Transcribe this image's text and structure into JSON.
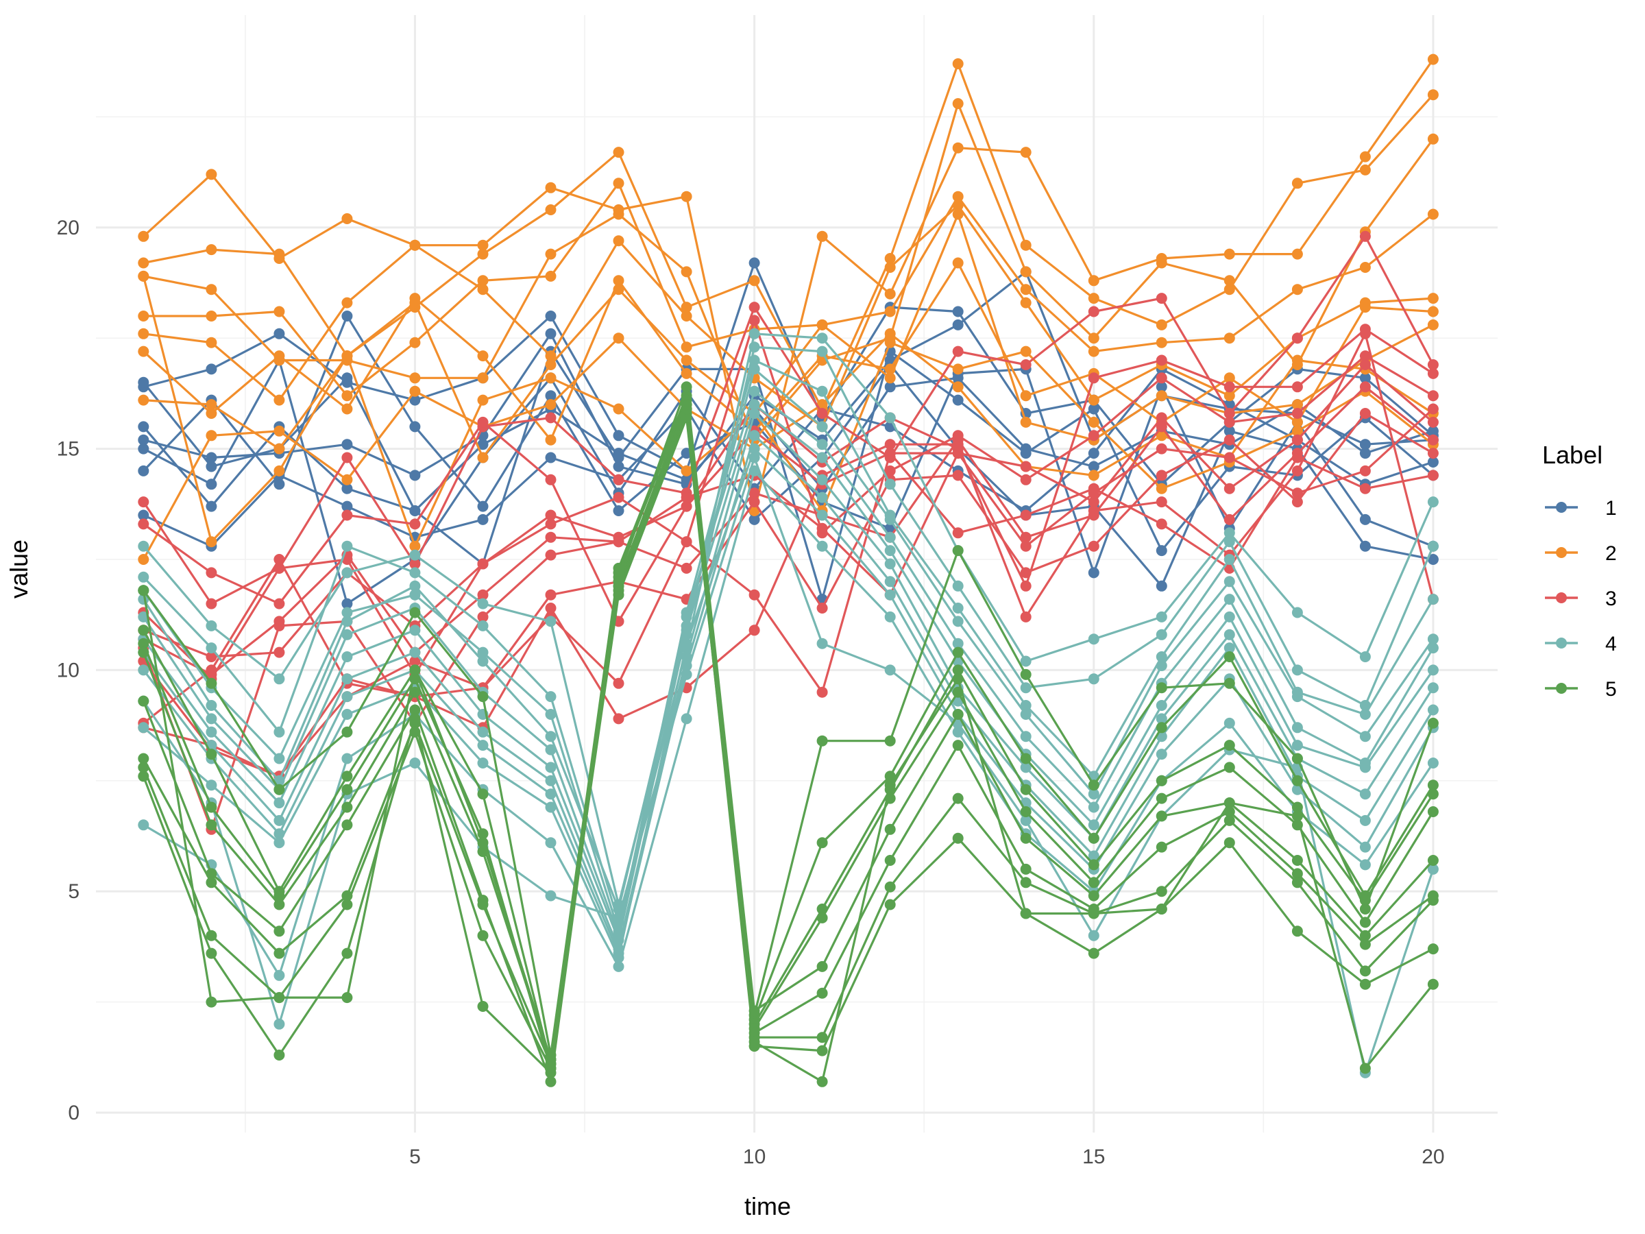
{
  "chart_data": {
    "type": "line",
    "title": "",
    "xlabel": "time",
    "ylabel": "value",
    "xlim": [
      0.3,
      20.95
    ],
    "ylim": [
      -0.45,
      24.8
    ],
    "x_ticks": [
      5,
      10,
      15,
      20
    ],
    "y_ticks": [
      0,
      5,
      10,
      15,
      20
    ],
    "x_minor_ticks": [
      2.5,
      7.5,
      12.5,
      17.5
    ],
    "y_minor_ticks": [
      2.5,
      7.5,
      12.5,
      17.5,
      22.5
    ],
    "legend": {
      "title": "Label",
      "position": "right"
    },
    "x": [
      1,
      2,
      3,
      4,
      5,
      6,
      7,
      8,
      9,
      10,
      11,
      12,
      13,
      14,
      15,
      16,
      17,
      18,
      19,
      20
    ],
    "series": [
      {
        "name": "1",
        "color": "#4e79a7",
        "lines": [
          [
            16.4,
            16.8,
            17.6,
            16.5,
            16.1,
            16.6,
            18.0,
            15.3,
            14.5,
            19.2,
            15.7,
            18.2,
            18.1,
            15.8,
            16.1,
            14.2,
            15.6,
            16.8,
            16.6,
            15.3
          ],
          [
            15.2,
            14.8,
            14.9,
            15.1,
            14.4,
            15.3,
            17.6,
            14.6,
            14.2,
            16.2,
            15.2,
            17.0,
            17.8,
            19.0,
            15.2,
            16.2,
            15.9,
            15.8,
            15.1,
            15.2
          ],
          [
            14.5,
            16.1,
            14.2,
            18.0,
            15.5,
            13.7,
            16.2,
            13.6,
            14.9,
            15.6,
            13.8,
            13.2,
            16.7,
            16.8,
            12.2,
            16.4,
            13.2,
            15.6,
            13.4,
            12.8
          ],
          [
            15.5,
            13.7,
            15.5,
            14.1,
            13.6,
            12.4,
            17.2,
            14.8,
            16.8,
            16.8,
            11.6,
            17.2,
            16.1,
            14.9,
            15.9,
            12.7,
            14.6,
            14.4,
            15.7,
            14.4
          ],
          [
            13.5,
            12.8,
            14.4,
            13.7,
            13.0,
            13.4,
            14.8,
            14.3,
            15.9,
            13.4,
            14.8,
            16.9,
            15.0,
            13.5,
            13.7,
            11.9,
            15.4,
            15.0,
            12.8,
            12.5
          ],
          [
            15.0,
            14.2,
            17.0,
            11.5,
            12.5,
            14.8,
            16.6,
            14.0,
            16.3,
            14.1,
            15.9,
            15.5,
            14.5,
            13.6,
            14.9,
            16.8,
            16.0,
            15.2,
            14.2,
            14.7
          ],
          [
            16.5,
            14.6,
            15.0,
            16.6,
            13.6,
            15.1,
            15.9,
            14.9,
            14.3,
            15.9,
            14.1,
            16.4,
            16.6,
            15.0,
            14.6,
            15.4,
            15.1,
            16.0,
            14.9,
            15.4
          ]
        ]
      },
      {
        "name": "2",
        "color": "#f28e2b",
        "lines": [
          [
            19.8,
            21.2,
            19.3,
            20.2,
            19.6,
            19.6,
            20.9,
            20.4,
            20.7,
            13.6,
            19.8,
            18.5,
            21.8,
            21.7,
            18.8,
            19.3,
            19.4,
            19.4,
            21.6,
            23.8
          ],
          [
            19.2,
            19.5,
            19.4,
            17.1,
            18.2,
            19.4,
            20.4,
            21.7,
            18.2,
            18.8,
            15.9,
            19.3,
            23.7,
            19.6,
            18.4,
            17.8,
            18.6,
            21.0,
            21.3,
            23.0
          ],
          [
            18.9,
            18.6,
            17.0,
            17.0,
            16.6,
            16.6,
            19.4,
            20.3,
            19.0,
            15.2,
            17.0,
            17.5,
            22.8,
            19.0,
            17.5,
            19.2,
            18.8,
            16.9,
            19.9,
            22.0
          ],
          [
            18.0,
            18.0,
            18.1,
            16.2,
            17.4,
            18.8,
            18.9,
            21.0,
            17.3,
            17.7,
            17.8,
            18.1,
            20.7,
            18.6,
            17.2,
            17.4,
            17.5,
            18.6,
            19.1,
            20.3
          ],
          [
            17.6,
            17.4,
            16.1,
            18.3,
            19.6,
            18.6,
            17.1,
            19.7,
            18.0,
            16.6,
            15.5,
            19.1,
            20.5,
            18.3,
            16.1,
            16.9,
            16.2,
            17.5,
            18.3,
            18.4
          ],
          [
            17.2,
            15.8,
            17.1,
            15.9,
            18.4,
            17.1,
            15.2,
            18.8,
            16.7,
            15.4,
            17.1,
            16.8,
            19.2,
            16.2,
            16.7,
            15.6,
            16.6,
            15.6,
            18.2,
            18.1
          ],
          [
            16.1,
            16.0,
            15.0,
            17.1,
            18.3,
            14.8,
            16.9,
            18.6,
            17.0,
            15.8,
            17.8,
            16.6,
            20.3,
            15.6,
            15.2,
            16.2,
            15.8,
            16.0,
            17.0,
            17.8
          ],
          [
            12.5,
            15.3,
            15.4,
            14.3,
            16.3,
            15.5,
            16.0,
            17.5,
            15.9,
            15.0,
            16.0,
            17.6,
            16.4,
            14.6,
            14.4,
            15.3,
            14.8,
            17.0,
            16.8,
            15.8
          ],
          [
            18.9,
            12.9,
            14.5,
            17.1,
            12.8,
            16.1,
            16.6,
            15.9,
            14.5,
            15.8,
            13.6,
            17.4,
            16.8,
            17.2,
            15.6,
            14.1,
            14.7,
            15.4,
            16.3,
            15.1
          ]
        ]
      },
      {
        "name": "3",
        "color": "#e15759",
        "lines": [
          [
            13.8,
            11.5,
            12.3,
            14.8,
            12.4,
            15.5,
            15.7,
            14.3,
            14.0,
            18.2,
            15.8,
            14.8,
            17.2,
            16.9,
            18.1,
            18.4,
            15.8,
            17.5,
            19.8,
            16.9
          ],
          [
            13.3,
            12.2,
            11.5,
            13.5,
            13.3,
            15.6,
            14.3,
            11.1,
            13.7,
            16.0,
            14.7,
            15.7,
            15.0,
            11.9,
            16.6,
            17.0,
            16.4,
            16.4,
            17.7,
            16.7
          ],
          [
            10.9,
            10.3,
            10.4,
            12.2,
            11.0,
            12.4,
            13.3,
            13.9,
            12.9,
            17.9,
            13.1,
            14.5,
            15.3,
            14.3,
            15.3,
            16.6,
            15.6,
            15.8,
            17.1,
            16.2
          ],
          [
            11.3,
            9.8,
            12.3,
            12.5,
            9.9,
            12.4,
            13.5,
            13.0,
            13.7,
            15.4,
            14.2,
            14.9,
            14.9,
            14.6,
            13.8,
            15.7,
            14.1,
            15.2,
            16.9,
            15.6
          ],
          [
            10.7,
            9.9,
            11.1,
            12.6,
            10.4,
            11.7,
            13.0,
            12.9,
            12.3,
            14.0,
            13.5,
            13.0,
            15.2,
            13.0,
            13.5,
            15.5,
            13.4,
            14.9,
            16.4,
            15.2
          ],
          [
            10.5,
            6.4,
            11.0,
            11.1,
            8.8,
            11.2,
            12.6,
            12.9,
            13.9,
            14.4,
            13.2,
            11.7,
            14.9,
            12.8,
            14.0,
            15.0,
            14.8,
            14.0,
            14.5,
            15.9
          ],
          [
            8.8,
            10.0,
            12.5,
            9.7,
            9.4,
            9.6,
            11.7,
            12.0,
            11.6,
            13.8,
            11.4,
            14.3,
            14.4,
            12.2,
            12.8,
            14.4,
            15.2,
            13.8,
            15.8,
            14.9
          ],
          [
            10.2,
            8.2,
            7.6,
            9.4,
            10.2,
            9.6,
            11.2,
            9.7,
            12.9,
            11.7,
            9.5,
            14.9,
            13.1,
            13.5,
            14.1,
            13.3,
            12.3,
            14.8,
            14.1,
            14.4
          ],
          [
            8.7,
            8.3,
            7.6,
            9.8,
            9.4,
            8.7,
            11.4,
            8.9,
            9.6,
            10.9,
            14.4,
            15.1,
            15.1,
            11.2,
            13.6,
            13.8,
            12.6,
            14.5,
            17.6,
            11.6
          ]
        ]
      },
      {
        "name": "4",
        "color": "#76b7b2",
        "lines": [
          [
            12.8,
            11.0,
            9.8,
            12.2,
            12.6,
            11.5,
            11.1,
            4.7,
            10.8,
            17.6,
            17.5,
            15.7,
            12.7,
            10.2,
            10.7,
            11.2,
            13.1,
            11.3,
            10.3,
            13.8
          ],
          [
            12.1,
            10.5,
            8.6,
            12.8,
            12.2,
            11.0,
            9.4,
            4.3,
            10.5,
            17.3,
            17.2,
            14.2,
            11.9,
            9.6,
            9.8,
            10.8,
            12.9,
            10.0,
            9.2,
            12.8
          ],
          [
            11.8,
            9.6,
            8.0,
            11.3,
            11.7,
            10.4,
            9.0,
            4.1,
            11.3,
            17.0,
            16.3,
            13.5,
            11.4,
            9.2,
            7.6,
            10.3,
            12.5,
            9.5,
            9.0,
            11.6
          ],
          [
            11.6,
            9.2,
            7.5,
            11.1,
            11.9,
            10.2,
            8.5,
            4.6,
            11.0,
            16.8,
            15.5,
            13.4,
            11.1,
            9.0,
            7.2,
            10.1,
            12.0,
            9.4,
            8.5,
            10.7
          ],
          [
            11.2,
            8.9,
            7.3,
            10.8,
            11.4,
            9.5,
            8.2,
            4.0,
            11.2,
            16.3,
            15.1,
            13.0,
            10.6,
            8.5,
            6.9,
            9.7,
            11.6,
            8.7,
            7.9,
            10.5
          ],
          [
            10.7,
            8.6,
            7.0,
            10.3,
            10.9,
            9.0,
            7.8,
            3.9,
            10.9,
            16.0,
            14.8,
            12.7,
            10.2,
            8.1,
            6.5,
            9.2,
            11.2,
            8.3,
            7.8,
            10.0
          ],
          [
            10.4,
            8.3,
            6.6,
            9.8,
            10.4,
            8.6,
            7.5,
            3.7,
            10.3,
            15.8,
            14.3,
            12.4,
            9.6,
            7.8,
            6.2,
            8.9,
            10.8,
            8.0,
            7.2,
            9.6
          ],
          [
            10.0,
            8.0,
            6.3,
            9.4,
            10.0,
            8.3,
            7.2,
            3.6,
            10.1,
            15.3,
            13.9,
            12.0,
            9.3,
            7.4,
            5.8,
            8.5,
            10.5,
            7.6,
            6.6,
            9.1
          ],
          [
            8.7,
            7.4,
            6.1,
            9.0,
            9.6,
            7.9,
            6.9,
            3.5,
            10.6,
            15.0,
            13.5,
            11.7,
            9.0,
            7.0,
            5.5,
            8.1,
            9.8,
            7.3,
            6.0,
            8.7
          ],
          [
            6.5,
            5.6,
            3.1,
            8.0,
            9.0,
            7.3,
            6.1,
            3.3,
            8.9,
            14.5,
            12.8,
            11.2,
            8.6,
            6.3,
            5.0,
            7.5,
            8.8,
            6.8,
            5.6,
            7.9
          ],
          [
            9.3,
            7.0,
            2.0,
            7.2,
            7.9,
            6.0,
            4.9,
            4.4,
            9.9,
            14.8,
            10.6,
            10.0,
            8.8,
            6.6,
            4.0,
            6.7,
            8.2,
            7.8,
            0.9,
            5.5
          ]
        ]
      },
      {
        "name": "5",
        "color": "#59a14f",
        "lines": [
          [
            11.8,
            9.7,
            7.3,
            8.6,
            11.3,
            9.4,
            1.3,
            12.3,
            16.2,
            2.2,
            8.4,
            8.4,
            12.7,
            9.9,
            7.4,
            9.6,
            9.7,
            8.0,
            4.6,
            8.8
          ],
          [
            10.9,
            8.1,
            5.0,
            7.6,
            10.0,
            7.2,
            1.1,
            12.0,
            16.0,
            2.1,
            6.1,
            7.6,
            10.4,
            8.0,
            6.2,
            8.7,
            10.3,
            7.5,
            4.9,
            7.4
          ],
          [
            10.6,
            6.9,
            4.9,
            7.3,
            9.8,
            6.3,
            1.0,
            11.9,
            15.9,
            2.0,
            4.6,
            7.3,
            10.0,
            7.3,
            5.6,
            7.5,
            8.3,
            6.9,
            4.8,
            7.2
          ],
          [
            10.4,
            6.5,
            4.7,
            6.9,
            9.5,
            5.9,
            1.2,
            11.8,
            15.8,
            1.9,
            4.4,
            7.1,
            9.5,
            6.8,
            5.2,
            7.1,
            7.8,
            6.5,
            4.3,
            6.8
          ],
          [
            9.3,
            5.4,
            4.1,
            6.5,
            9.1,
            4.8,
            0.7,
            12.1,
            16.4,
            2.3,
            3.3,
            6.4,
            9.0,
            6.2,
            4.9,
            6.7,
            7.0,
            5.7,
            4.0,
            5.7
          ],
          [
            8.0,
            5.2,
            3.6,
            4.9,
            8.8,
            4.7,
            1.1,
            11.7,
            15.7,
            1.8,
            2.7,
            5.7,
            8.3,
            5.5,
            4.6,
            6.0,
            6.8,
            5.4,
            3.8,
            4.9
          ],
          [
            7.8,
            4.0,
            2.6,
            4.7,
            8.6,
            4.0,
            1.0,
            12.2,
            16.1,
            1.7,
            1.7,
            5.1,
            7.1,
            5.2,
            4.5,
            5.0,
            6.6,
            5.2,
            3.2,
            4.8
          ],
          [
            7.6,
            3.6,
            1.3,
            3.6,
            8.9,
            2.4,
            0.9,
            11.9,
            15.9,
            1.5,
            1.4,
            4.7,
            6.2,
            4.5,
            3.6,
            4.6,
            6.1,
            4.1,
            2.9,
            3.7
          ],
          [
            11.8,
            2.5,
            2.6,
            2.6,
            10.0,
            6.1,
            1.2,
            12.0,
            16.0,
            1.6,
            0.7,
            7.4,
            9.8,
            4.5,
            4.5,
            4.6,
            7.0,
            6.7,
            1.0,
            2.9
          ]
        ]
      }
    ]
  }
}
